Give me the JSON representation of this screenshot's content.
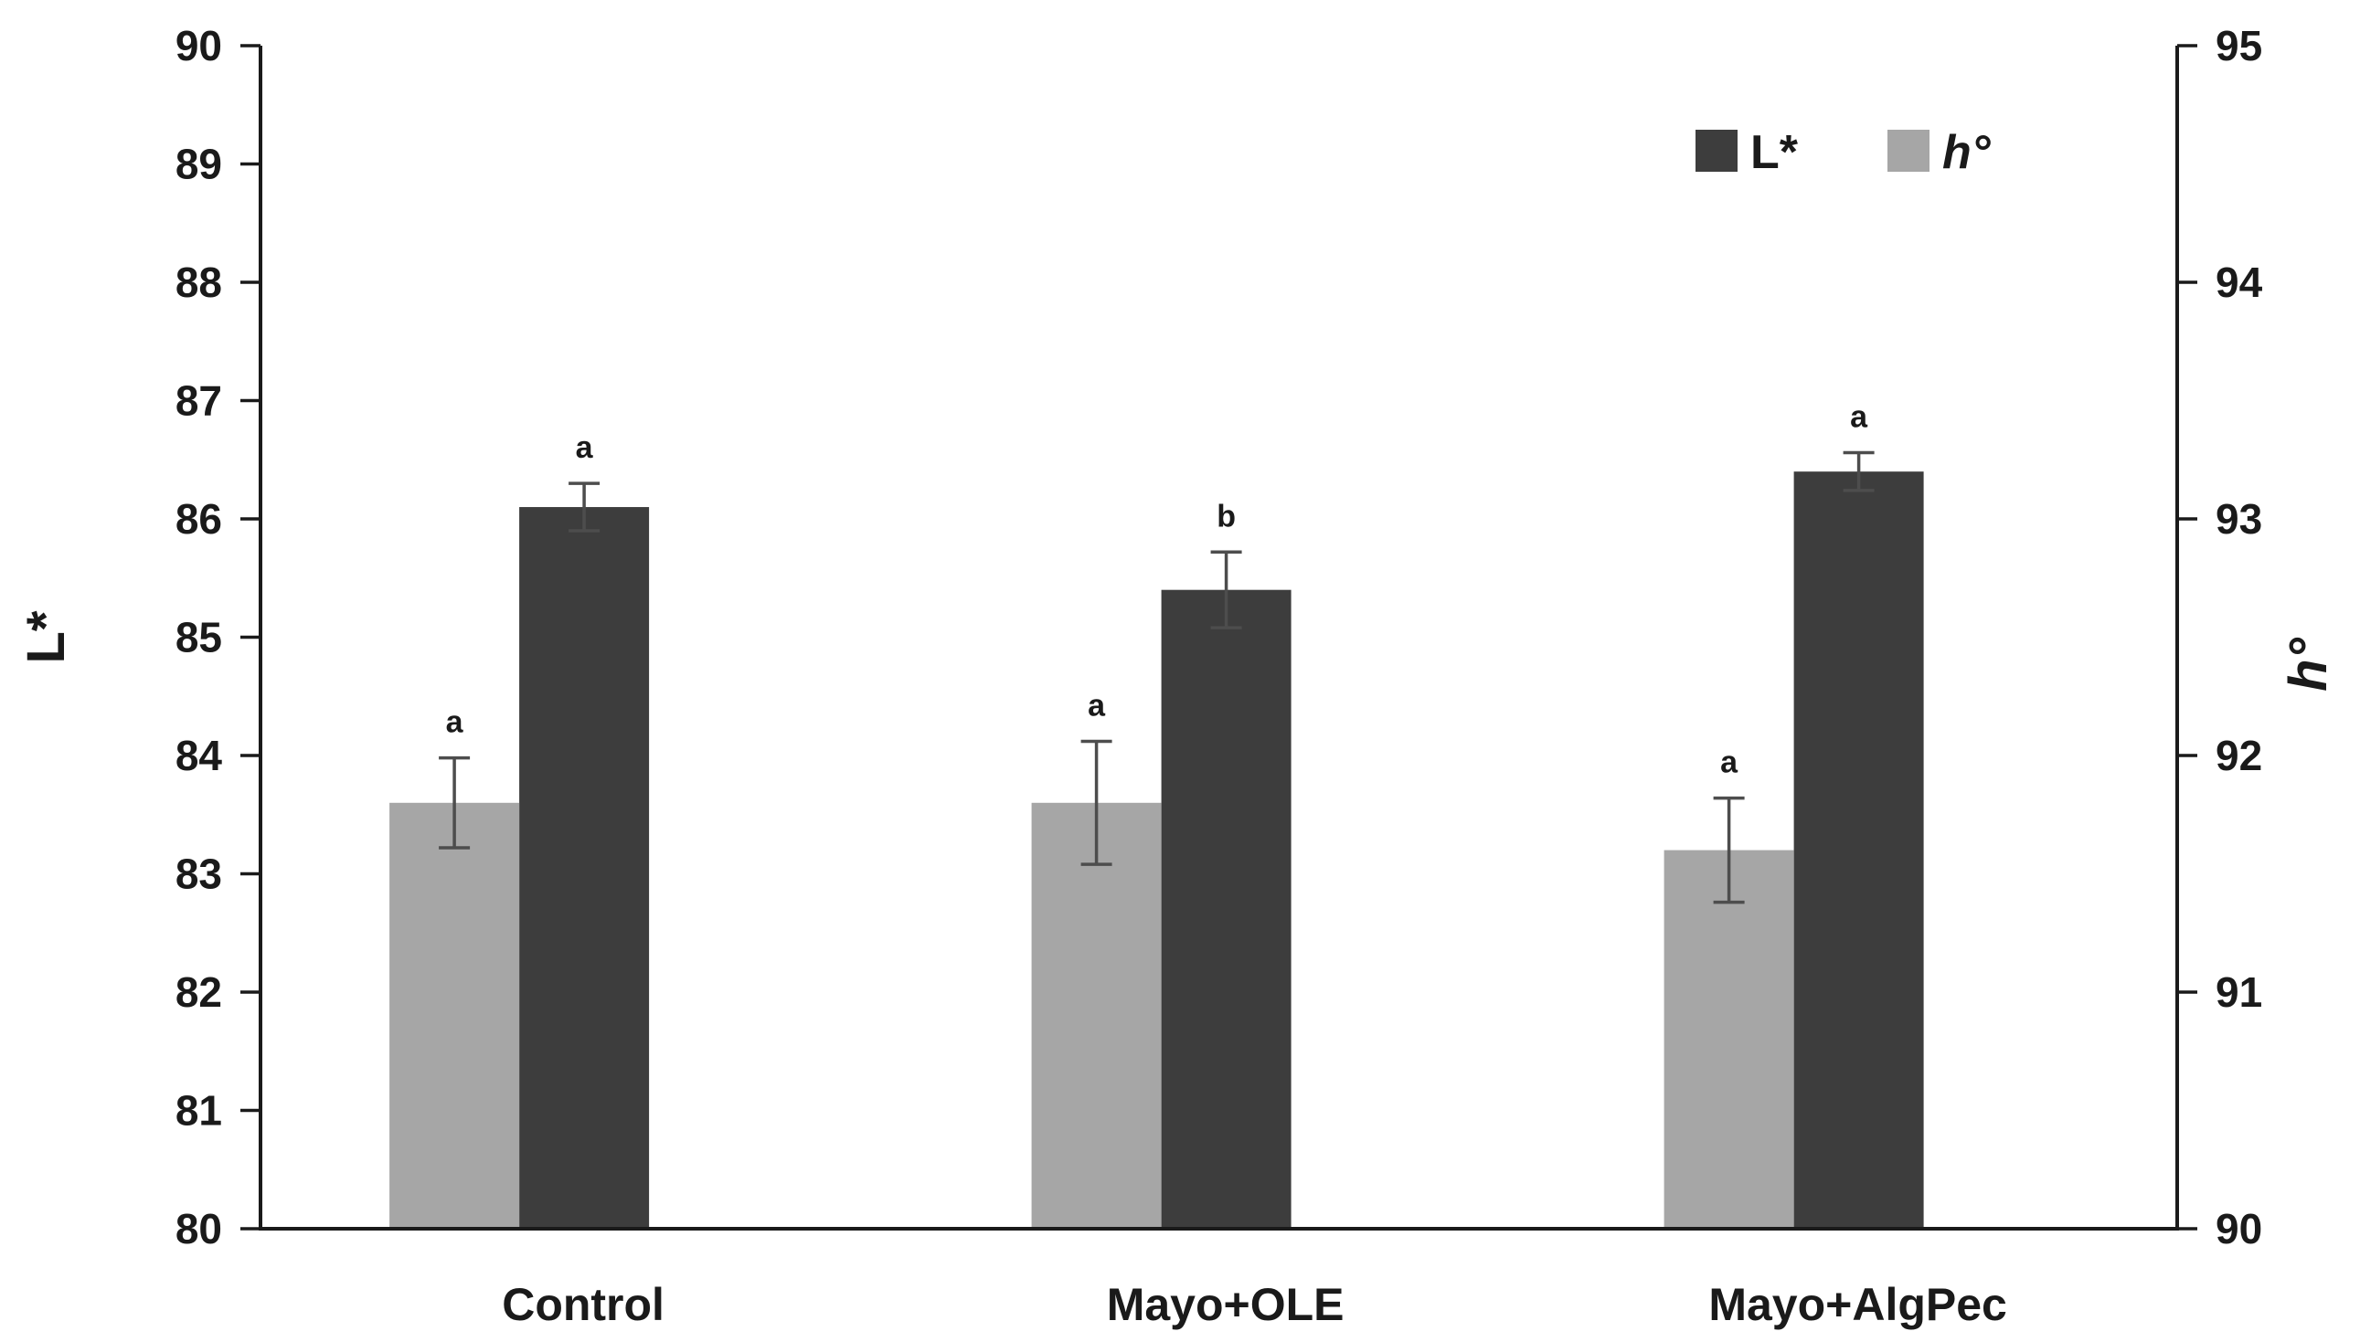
{
  "chart_data": {
    "type": "bar",
    "title": "",
    "categories": [
      "Control",
      "Mayo+OLE",
      "Mayo+AlgPec"
    ],
    "left_axis": {
      "label": "L*",
      "min": 80,
      "max": 90,
      "ticks": [
        80,
        81,
        82,
        83,
        84,
        85,
        86,
        87,
        88,
        89,
        90
      ]
    },
    "right_axis": {
      "label": "h°",
      "min": 90,
      "max": 95,
      "ticks": [
        90,
        91,
        92,
        93,
        94,
        95
      ]
    },
    "series": [
      {
        "name": "L*",
        "axis": "left",
        "position": "right",
        "italic": false,
        "color": "#3d3d3d",
        "values": [
          86.1,
          85.4,
          86.4
        ],
        "errors": [
          0.2,
          0.32,
          0.16
        ],
        "letters": [
          "a",
          "b",
          "a"
        ]
      },
      {
        "name": "h°",
        "axis": "right",
        "position": "left",
        "italic": true,
        "color": "#a6a6a6",
        "values": [
          91.8,
          91.8,
          91.6
        ],
        "errors": [
          0.19,
          0.26,
          0.22
        ],
        "letters": [
          "a",
          "a",
          "a"
        ]
      }
    ],
    "legend": {
      "position": "top-right",
      "entries": [
        "L*",
        "h°"
      ]
    },
    "grid": false,
    "background": "#ffffff",
    "colors": {
      "axis_line": "#1a1a1a",
      "error_bar": "#4d4d4d",
      "dark_bar": "#3d3d3d",
      "light_bar": "#a6a6a6"
    }
  }
}
